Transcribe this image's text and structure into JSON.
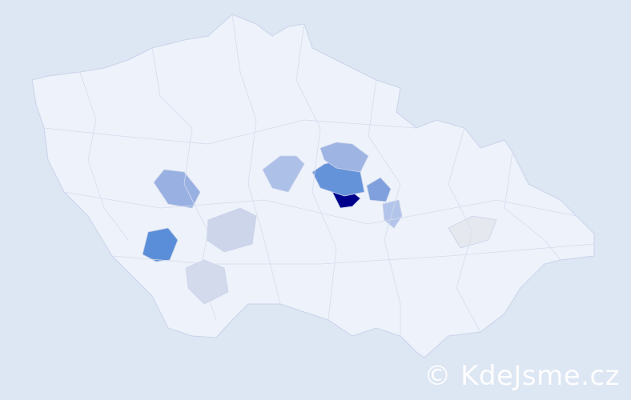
{
  "map": {
    "background": "#dde6f3",
    "base_fill": "#eef2fa",
    "border_color": "#c9d3ea",
    "regions": [
      {
        "level": "highest",
        "color": "#00008b"
      },
      {
        "level": "high",
        "color": "#5b8ed8"
      },
      {
        "level": "high",
        "color": "#6593da"
      },
      {
        "level": "medium",
        "color": "#7fa0dc"
      },
      {
        "level": "medium",
        "color": "#98b0e2"
      },
      {
        "level": "medium",
        "color": "#9eb4e3"
      },
      {
        "level": "low",
        "color": "#adc0e8"
      },
      {
        "level": "low",
        "color": "#b3c4ea"
      },
      {
        "level": "low",
        "color": "#ccd5ea"
      },
      {
        "level": "low",
        "color": "#d3daeb"
      },
      {
        "level": "lowest",
        "color": "#e6e8ef"
      }
    ]
  },
  "watermark": "© KdeJsme.cz"
}
